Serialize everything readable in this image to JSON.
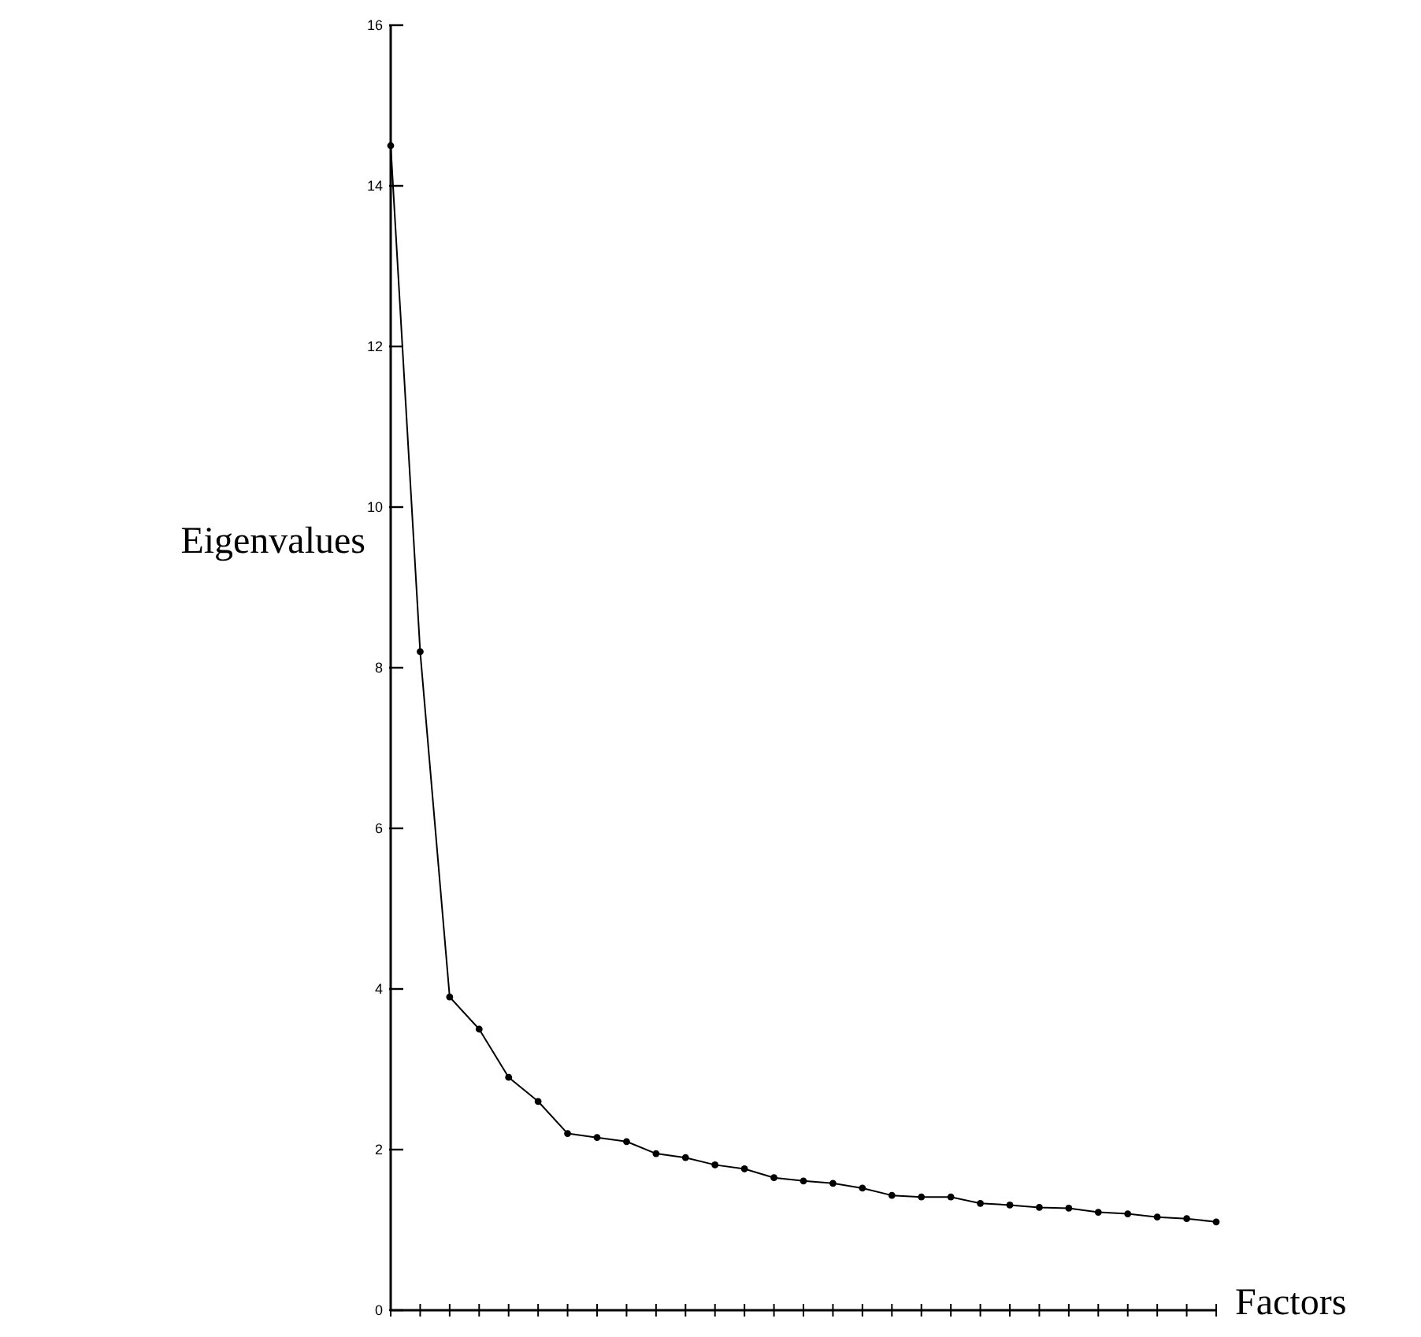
{
  "chart_data": {
    "type": "line",
    "ylabel": "Eigenvalues",
    "xlabel": "Factors",
    "categories": [
      null,
      null,
      null,
      null,
      null,
      null,
      null,
      null,
      null,
      null,
      null,
      null,
      null,
      null,
      null,
      null,
      null,
      null,
      null,
      null,
      null,
      null,
      null,
      null,
      null,
      null,
      null,
      null,
      null
    ],
    "series": [
      {
        "color": "#000000",
        "values": [
          14.5,
          8.2,
          3.9,
          3.5,
          2.9,
          2.6,
          2.2,
          2.15,
          2.1,
          1.95,
          1.9,
          1.81,
          1.76,
          1.65,
          1.61,
          1.58,
          1.52,
          1.43,
          1.41,
          1.41,
          1.33,
          1.31,
          1.28,
          1.27,
          1.22,
          1.2,
          1.16,
          1.14,
          1.1
        ]
      }
    ],
    "ylim": [
      0,
      16
    ],
    "yticks": [
      0,
      2,
      4,
      6,
      8,
      10,
      12,
      14,
      16
    ],
    "tick_labels": "y",
    "marker": "circle",
    "line_style": "solid"
  }
}
